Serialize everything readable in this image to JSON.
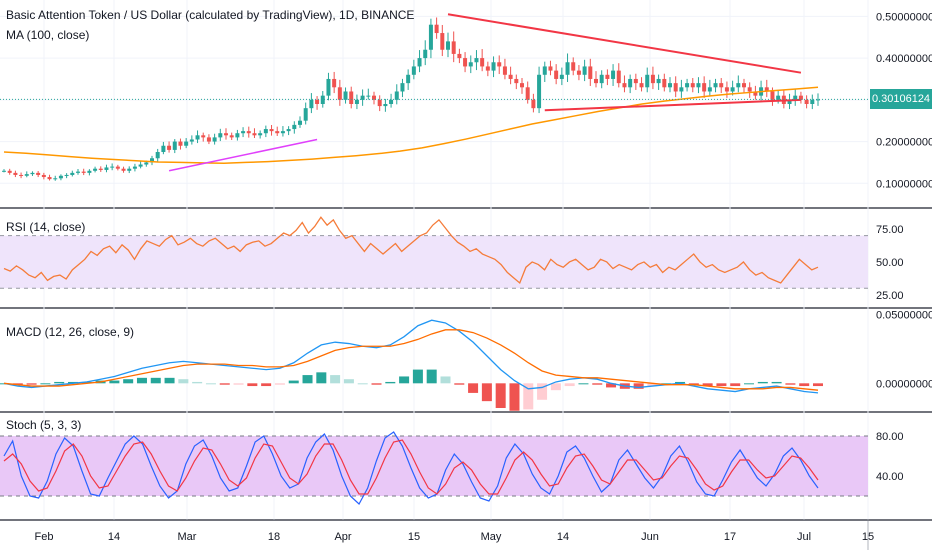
{
  "header": {
    "symbol_title": "Basic Attention Token / US Dollar (calculated by TradingView), 1D, BINANCE",
    "ma_label": "MA (100, close)"
  },
  "panes": {
    "rsi_label": "RSI (14, close)",
    "macd_label": "MACD (12, 26, close, 9)",
    "stoch_label": "Stoch (5, 3, 3)"
  },
  "colors": {
    "up": "#26a69a",
    "down": "#ef5350",
    "ma": "#ff9800",
    "trendline": "#f23645",
    "rsi": "#f57c3a",
    "rsi_band": "#efe4fb",
    "macd": "#2196f3",
    "signal": "#ff6d00",
    "stoch_k": "#2962ff",
    "stoch_d": "#f23645",
    "stoch_band": "#e9c8f7",
    "price_line": "#26a69a"
  },
  "chart_data": [
    {
      "type": "candlestick",
      "title": "Basic Attention Token / US Dollar (calculated by TradingView), 1D, BINANCE",
      "x_ticks": [
        "Feb",
        "14",
        "Mar",
        "18",
        "Apr",
        "15",
        "May",
        "14",
        "Jun",
        "17",
        "Jul",
        "15"
      ],
      "y_ticks": [
        "0.50000000",
        "0.40000000",
        "0.30000000",
        "0.20000000",
        "0.10000000"
      ],
      "ylim": [
        0.06,
        0.52
      ],
      "last_price": "0.30106124",
      "close_series": [
        0.13,
        0.125,
        0.12,
        0.118,
        0.122,
        0.125,
        0.12,
        0.115,
        0.11,
        0.112,
        0.118,
        0.12,
        0.125,
        0.128,
        0.125,
        0.13,
        0.135,
        0.132,
        0.138,
        0.14,
        0.135,
        0.13,
        0.135,
        0.14,
        0.145,
        0.15,
        0.16,
        0.175,
        0.19,
        0.18,
        0.2,
        0.19,
        0.2,
        0.205,
        0.215,
        0.21,
        0.2,
        0.21,
        0.22,
        0.215,
        0.21,
        0.22,
        0.225,
        0.22,
        0.215,
        0.22,
        0.23,
        0.225,
        0.22,
        0.225,
        0.23,
        0.24,
        0.25,
        0.28,
        0.3,
        0.29,
        0.31,
        0.35,
        0.33,
        0.3,
        0.32,
        0.29,
        0.3,
        0.31,
        0.31,
        0.3,
        0.285,
        0.29,
        0.3,
        0.32,
        0.34,
        0.36,
        0.38,
        0.4,
        0.42,
        0.48,
        0.46,
        0.42,
        0.44,
        0.41,
        0.4,
        0.38,
        0.39,
        0.4,
        0.38,
        0.37,
        0.39,
        0.38,
        0.36,
        0.35,
        0.34,
        0.33,
        0.3,
        0.28,
        0.36,
        0.38,
        0.37,
        0.35,
        0.36,
        0.39,
        0.37,
        0.36,
        0.38,
        0.35,
        0.34,
        0.36,
        0.35,
        0.37,
        0.34,
        0.33,
        0.35,
        0.34,
        0.33,
        0.36,
        0.34,
        0.35,
        0.33,
        0.34,
        0.32,
        0.33,
        0.34,
        0.33,
        0.34,
        0.32,
        0.33,
        0.34,
        0.33,
        0.32,
        0.33,
        0.34,
        0.33,
        0.32,
        0.31,
        0.33,
        0.32,
        0.3,
        0.31,
        0.29,
        0.3,
        0.31,
        0.3,
        0.29,
        0.3,
        0.301
      ],
      "ma_series": [
        0.175,
        0.172,
        0.168,
        0.164,
        0.16,
        0.157,
        0.154,
        0.151,
        0.15,
        0.149,
        0.148,
        0.15,
        0.152,
        0.155,
        0.158,
        0.162,
        0.166,
        0.171,
        0.177,
        0.185,
        0.195,
        0.206,
        0.218,
        0.23,
        0.242,
        0.252,
        0.262,
        0.272,
        0.281,
        0.29,
        0.297,
        0.303,
        0.309,
        0.314,
        0.318,
        0.322,
        0.326,
        0.33
      ],
      "annotations": [
        "descending trendline from 0.50 (Apr 20) to 0.365 (Jul 6)",
        "support line from 0.27 (May 11) to 0.30 (Jul 6)",
        "rising trendline Feb 25 to Mar 24"
      ]
    },
    {
      "type": "line",
      "title": "RSI (14, close)",
      "y_ticks": [
        "75.00",
        "50.00",
        "25.00"
      ],
      "ylim": [
        18,
        88
      ],
      "band": [
        30,
        70
      ],
      "values": [
        45,
        43,
        47,
        44,
        40,
        38,
        42,
        36,
        39,
        40,
        37,
        44,
        48,
        52,
        58,
        55,
        60,
        62,
        57,
        63,
        59,
        52,
        60,
        66,
        64,
        62,
        67,
        70,
        63,
        65,
        68,
        64,
        62,
        66,
        68,
        64,
        60,
        62,
        58,
        63,
        65,
        66,
        62,
        64,
        68,
        72,
        70,
        74,
        80,
        72,
        77,
        84,
        78,
        82,
        74,
        68,
        70,
        64,
        58,
        64,
        60,
        56,
        60,
        64,
        58,
        62,
        66,
        70,
        72,
        78,
        82,
        76,
        70,
        65,
        62,
        58,
        60,
        56,
        54,
        52,
        48,
        42,
        38,
        34,
        46,
        50,
        48,
        44,
        52,
        48,
        46,
        50,
        52,
        48,
        44,
        46,
        52,
        50,
        45,
        48,
        46,
        44,
        48,
        50,
        46,
        48,
        42,
        46,
        44,
        48,
        52,
        56,
        50,
        46,
        48,
        44,
        42,
        44,
        46,
        50,
        44,
        40,
        42,
        38,
        36,
        34,
        40,
        46,
        52,
        48,
        44,
        46
      ],
      "axis_tick_positions": []
    },
    {
      "type": "bar+line",
      "title": "MACD (12, 26, close, 9)",
      "y_ticks": [
        "0.05000000",
        "0.00000000"
      ],
      "ylim": [
        -0.018,
        0.052
      ],
      "macd": [
        0.0,
        -0.002,
        -0.003,
        -0.002,
        -0.001,
        0.0,
        0.001,
        0.003,
        0.005,
        0.008,
        0.011,
        0.013,
        0.015,
        0.016,
        0.015,
        0.014,
        0.013,
        0.012,
        0.011,
        0.01,
        0.011,
        0.015,
        0.022,
        0.028,
        0.03,
        0.029,
        0.027,
        0.026,
        0.028,
        0.034,
        0.042,
        0.046,
        0.044,
        0.038,
        0.03,
        0.02,
        0.01,
        0.002,
        -0.004,
        -0.003,
        0.001,
        0.003,
        0.004,
        0.003,
        0.0,
        -0.002,
        -0.003,
        -0.002,
        -0.001,
        0.0,
        -0.002,
        -0.004,
        -0.005,
        -0.006,
        -0.004,
        -0.003,
        -0.002,
        -0.004,
        -0.006,
        -0.007
      ],
      "signal": [
        0.0,
        -0.001,
        -0.002,
        -0.002,
        -0.002,
        -0.001,
        0.0,
        0.001,
        0.003,
        0.005,
        0.007,
        0.009,
        0.011,
        0.013,
        0.014,
        0.014,
        0.014,
        0.013,
        0.013,
        0.012,
        0.012,
        0.013,
        0.016,
        0.02,
        0.024,
        0.026,
        0.027,
        0.027,
        0.027,
        0.029,
        0.032,
        0.036,
        0.039,
        0.039,
        0.037,
        0.033,
        0.028,
        0.022,
        0.015,
        0.009,
        0.006,
        0.005,
        0.004,
        0.004,
        0.003,
        0.002,
        0.001,
        0.0,
        -0.001,
        -0.001,
        -0.001,
        -0.002,
        -0.003,
        -0.004,
        -0.004,
        -0.004,
        -0.003,
        -0.003,
        -0.004,
        -0.005
      ]
    },
    {
      "type": "line",
      "title": "Stoch (5, 3, 3)",
      "y_ticks": [
        "80.00",
        "40.00"
      ],
      "ylim": [
        0,
        100
      ],
      "band": [
        20,
        80
      ],
      "k": [
        60,
        75,
        40,
        20,
        18,
        35,
        62,
        78,
        70,
        45,
        22,
        20,
        38,
        55,
        72,
        80,
        72,
        50,
        30,
        18,
        25,
        52,
        70,
        76,
        60,
        38,
        25,
        28,
        50,
        74,
        80,
        62,
        40,
        28,
        32,
        58,
        74,
        82,
        66,
        40,
        20,
        12,
        28,
        55,
        78,
        84,
        70,
        48,
        28,
        18,
        22,
        46,
        62,
        52,
        34,
        18,
        15,
        30,
        58,
        72,
        62,
        42,
        28,
        22,
        40,
        64,
        70,
        58,
        40,
        24,
        32,
        56,
        66,
        52,
        38,
        28,
        40,
        60,
        70,
        54,
        34,
        22,
        20,
        36,
        54,
        66,
        52,
        38,
        30,
        42,
        60,
        68,
        56,
        40,
        28
      ],
      "d": [
        55,
        62,
        52,
        35,
        25,
        28,
        45,
        65,
        72,
        60,
        40,
        28,
        30,
        45,
        60,
        72,
        74,
        62,
        45,
        30,
        25,
        38,
        55,
        68,
        66,
        52,
        36,
        30,
        38,
        58,
        72,
        70,
        54,
        38,
        32,
        42,
        60,
        72,
        72,
        56,
        36,
        22,
        22,
        38,
        58,
        74,
        76,
        62,
        44,
        28,
        22,
        32,
        48,
        54,
        46,
        32,
        22,
        22,
        38,
        56,
        64,
        56,
        42,
        30,
        32,
        48,
        60,
        62,
        50,
        36,
        32,
        44,
        56,
        56,
        46,
        36,
        38,
        50,
        60,
        58,
        46,
        32,
        26,
        30,
        44,
        56,
        56,
        46,
        38,
        40,
        50,
        60,
        58,
        48,
        36
      ]
    }
  ]
}
